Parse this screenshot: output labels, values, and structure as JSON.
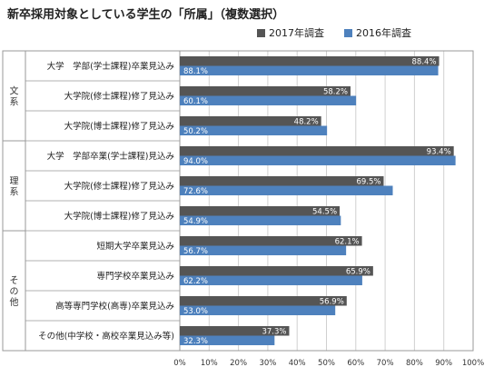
{
  "title": "新卒採用対象としている学生の「所属」（複数選択）",
  "colors": {
    "s2017": "#555555",
    "s2016": "#4e81bd",
    "grid": "#d0d0d0",
    "frame": "#999999"
  },
  "chart_data": {
    "type": "bar",
    "orientation": "horizontal",
    "title": "新卒採用対象としている学生の「所属」（複数選択）",
    "xlim": [
      0,
      100
    ],
    "x_ticks": [
      "0%",
      "10%",
      "20%",
      "30%",
      "40%",
      "50%",
      "60%",
      "70%",
      "80%",
      "90%",
      "100%"
    ],
    "legend_position": "top",
    "groups": [
      {
        "label": "文系",
        "categories": [
          0,
          1,
          2
        ]
      },
      {
        "label": "理系",
        "categories": [
          3,
          4,
          5
        ]
      },
      {
        "label": "その他",
        "categories": [
          6,
          7,
          8,
          9
        ]
      }
    ],
    "categories": [
      "大学　学部(学士課程)卒業見込み",
      "大学院(修士課程)修了見込み",
      "大学院(博士課程)修了見込み",
      "大学　学部卒業(学士課程)見込み",
      "大学院(修士課程)修了見込み",
      "大学院(博士課程)修了見込み",
      "短期大学卒業見込み",
      "専門学校卒業見込み",
      "高等専門学校(高専)卒業見込み",
      "その他(中学校・高校卒業見込み等)"
    ],
    "series": [
      {
        "name": "2017年調査",
        "values": [
          88.4,
          58.2,
          48.2,
          93.4,
          69.5,
          54.5,
          62.1,
          65.9,
          56.9,
          37.3
        ],
        "labels": [
          "88.4%",
          "58.2%",
          "48.2%",
          "93.4%",
          "69.5%",
          "54.5%",
          "62.1%",
          "65.9%",
          "56.9%",
          "37.3%"
        ]
      },
      {
        "name": "2016年調査",
        "values": [
          88.1,
          60.1,
          50.2,
          94.0,
          72.6,
          54.9,
          56.7,
          62.2,
          53.0,
          32.3
        ],
        "labels": [
          "88.1%",
          "60.1%",
          "50.2%",
          "94.0%",
          "72.6%",
          "54.9%",
          "56.7%",
          "62.2%",
          "53.0%",
          "32.3%"
        ]
      }
    ]
  }
}
